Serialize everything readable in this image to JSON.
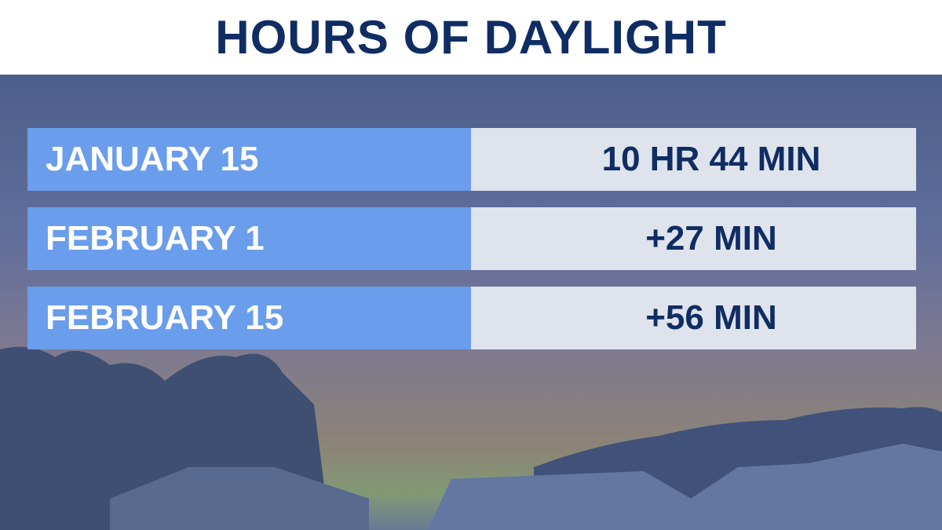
{
  "header": {
    "title": "HOURS OF DAYLIGHT"
  },
  "table": {
    "rows": [
      [
        "JANUARY 15",
        "10 HR 44 MIN"
      ],
      [
        "FEBRUARY 1",
        "+27 MIN"
      ],
      [
        "FEBRUARY 15",
        "+56 MIN"
      ]
    ]
  }
}
